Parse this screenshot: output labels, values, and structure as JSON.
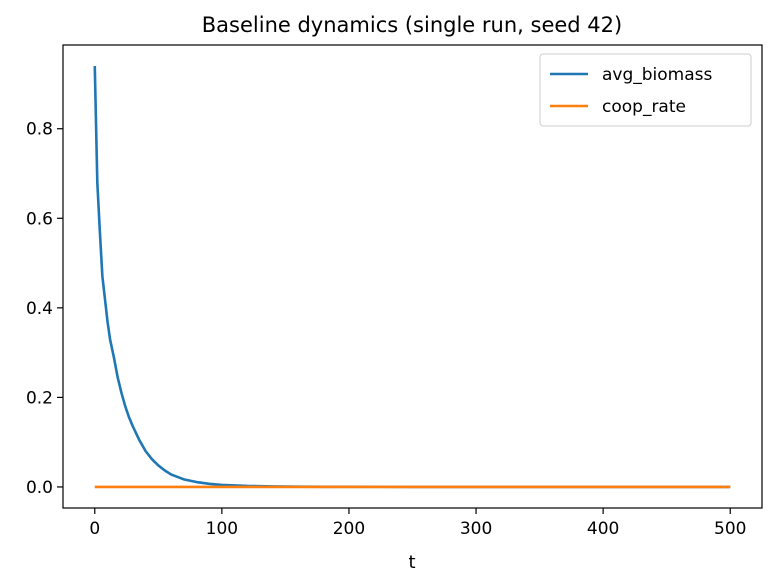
{
  "chart_data": {
    "type": "line",
    "title": "Baseline dynamics (single run, seed 42)",
    "xlabel": "t",
    "ylabel": "",
    "xlim": [
      -25,
      525
    ],
    "ylim": [
      -0.047,
      0.987
    ],
    "xticks": [
      0,
      100,
      200,
      300,
      400,
      500
    ],
    "xtick_labels": [
      "0",
      "100",
      "200",
      "300",
      "400",
      "500"
    ],
    "yticks": [
      0.0,
      0.2,
      0.4,
      0.6,
      0.8
    ],
    "ytick_labels": [
      "0.0",
      "0.2",
      "0.4",
      "0.6",
      "0.8"
    ],
    "grid": false,
    "legend_position": "upper right",
    "series": [
      {
        "name": "avg_biomass",
        "color": "#1f77b4",
        "x": [
          0,
          2,
          4,
          6,
          8,
          10,
          12,
          15,
          18,
          21,
          24,
          27,
          30,
          35,
          40,
          45,
          50,
          55,
          60,
          70,
          80,
          90,
          100,
          120,
          140,
          160,
          180,
          200,
          250,
          300,
          350,
          400,
          450,
          500
        ],
        "y": [
          0.94,
          0.68,
          0.57,
          0.47,
          0.42,
          0.37,
          0.33,
          0.29,
          0.245,
          0.21,
          0.18,
          0.155,
          0.135,
          0.105,
          0.08,
          0.062,
          0.048,
          0.037,
          0.028,
          0.017,
          0.011,
          0.007,
          0.0045,
          0.0022,
          0.0012,
          0.0007,
          0.0004,
          0.0002,
          0.0001,
          0.0,
          0.0,
          0.0,
          0.0,
          0.0
        ]
      },
      {
        "name": "coop_rate",
        "color": "#ff7f0e",
        "x": [
          0,
          100,
          200,
          300,
          400,
          500
        ],
        "y": [
          0.0,
          0.0,
          0.0,
          0.0,
          0.0,
          0.0
        ]
      }
    ]
  }
}
